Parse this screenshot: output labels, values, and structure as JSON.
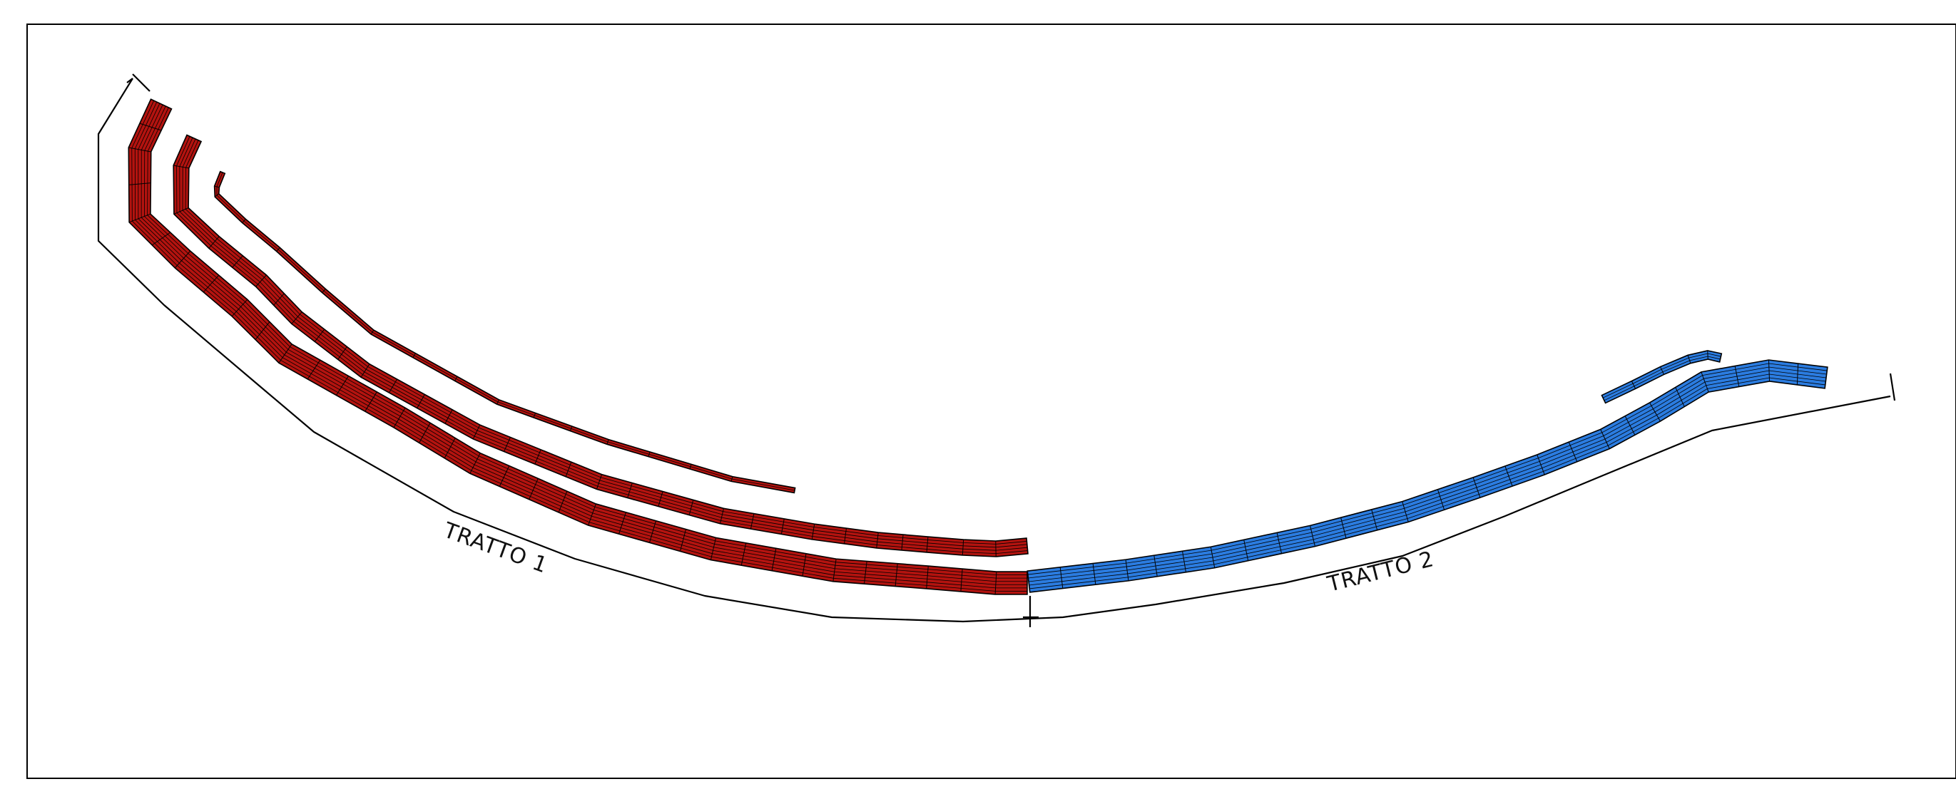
{
  "sections": [
    {
      "id": "tratto-1",
      "label": "TRATTO 1",
      "color": "#b3130f"
    },
    {
      "id": "tratto-2",
      "label": "TRATTO 2",
      "color": "#2b7ce0"
    }
  ],
  "line_color": "#000000",
  "hatch_color": "#000000"
}
